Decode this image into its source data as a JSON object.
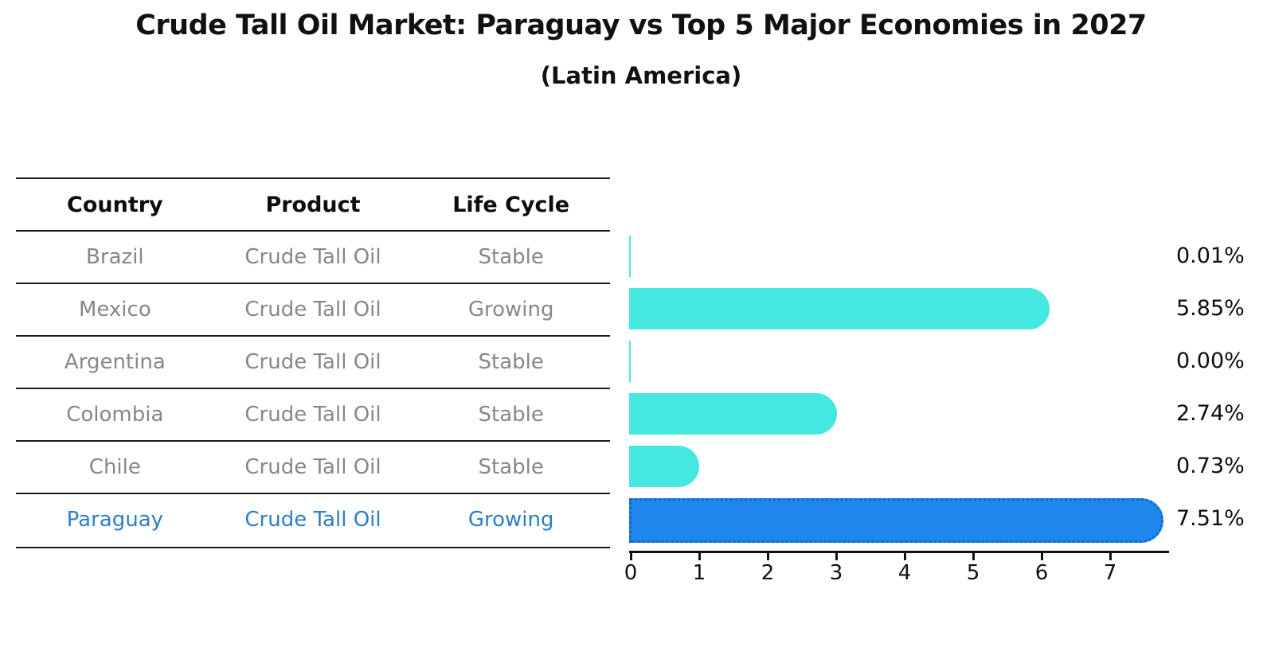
{
  "title": "Crude Tall Oil Market: Paraguay vs Top 5 Major Economies in 2027",
  "subtitle": "(Latin America)",
  "table": {
    "headers": [
      "Country",
      "Product",
      "Life Cycle"
    ],
    "rows": [
      {
        "country": "Brazil",
        "product": "Crude Tall Oil",
        "life_cycle": "Stable",
        "highlight": false
      },
      {
        "country": "Mexico",
        "product": "Crude Tall Oil",
        "life_cycle": "Growing",
        "highlight": false
      },
      {
        "country": "Argentina",
        "product": "Crude Tall Oil",
        "life_cycle": "Stable",
        "highlight": false
      },
      {
        "country": "Colombia",
        "product": "Crude Tall Oil",
        "life_cycle": "Stable",
        "highlight": false
      },
      {
        "country": "Chile",
        "product": "Crude Tall Oil",
        "life_cycle": "Stable",
        "highlight": false
      },
      {
        "country": "Paraguay",
        "product": "Crude Tall Oil",
        "life_cycle": "Growing",
        "highlight": true
      }
    ]
  },
  "chart_data": {
    "type": "bar",
    "orientation": "horizontal",
    "title": "Crude Tall Oil Market: Paraguay vs Top 5 Major Economies in 2027 (Latin America)",
    "categories": [
      "Brazil",
      "Mexico",
      "Argentina",
      "Colombia",
      "Chile",
      "Paraguay"
    ],
    "values": [
      0.01,
      5.85,
      0.0,
      2.74,
      0.73,
      7.51
    ],
    "value_labels": [
      "0.01%",
      "5.85%",
      "0.00%",
      "2.74%",
      "0.73%",
      "7.51%"
    ],
    "unit": "percent",
    "x_ticks": [
      0,
      1,
      2,
      3,
      4,
      5,
      6,
      7
    ],
    "xlim": [
      0,
      7.88
    ],
    "grid": false,
    "legend": "none",
    "highlight_index": 5,
    "bar_color": "#45e8e1",
    "highlight_bar_color": "#1e86ec",
    "highlight_text_color": "#2b7ec9"
  }
}
